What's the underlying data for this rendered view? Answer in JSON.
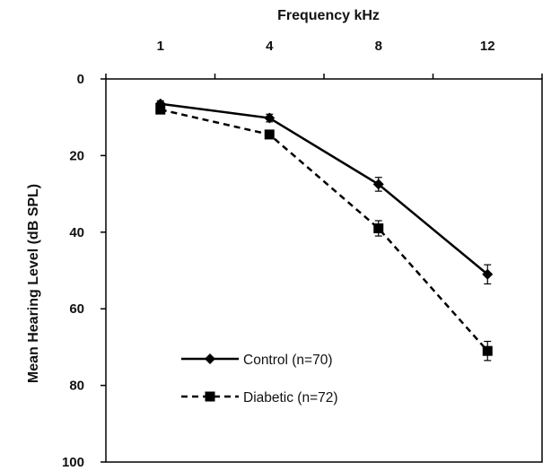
{
  "chart_data": {
    "type": "line",
    "xlabel": "Frequency kHz",
    "ylabel": "Mean Hearing Level (dB SPL)",
    "x_categories": [
      "1",
      "4",
      "8",
      "12"
    ],
    "y_ticks": [
      "0",
      "20",
      "40",
      "60",
      "80",
      "100"
    ],
    "ylim": [
      0,
      100
    ],
    "y_inverted": true,
    "x_axis_position": "top",
    "grid": false,
    "legend_position": "bottom-left",
    "series": [
      {
        "name": "Control (n=70)",
        "marker": "diamond",
        "line_style": "solid",
        "color": "#000000",
        "values": [
          6.5,
          10.2,
          27.5,
          51
        ],
        "errors": [
          0.8,
          1.0,
          1.8,
          2.5
        ]
      },
      {
        "name": "Diabetic (n=72)",
        "marker": "square",
        "line_style": "dashed",
        "color": "#000000",
        "values": [
          8,
          14.5,
          39,
          71
        ],
        "errors": [
          0.8,
          1.0,
          2.0,
          2.5
        ]
      }
    ]
  }
}
